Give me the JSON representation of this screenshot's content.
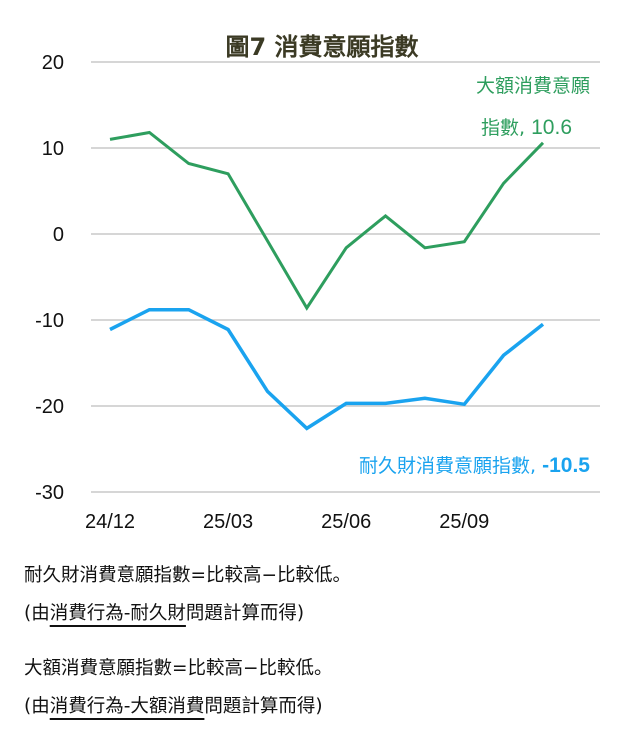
{
  "chart_data": {
    "type": "line",
    "title": "圖7  消費意願指數",
    "xlabel": "",
    "ylabel": "",
    "x": [
      "24/12",
      "25/01",
      "25/02",
      "25/03",
      "25/04",
      "25/05",
      "25/06",
      "25/07",
      "25/08",
      "25/09",
      "25/10",
      "25/11"
    ],
    "x_tick_labels": [
      "24/12",
      "25/03",
      "25/06",
      "25/09"
    ],
    "ylim": [
      -30,
      20
    ],
    "y_ticks": [
      20,
      10,
      0,
      -10,
      -20,
      -30
    ],
    "grid": true,
    "series": [
      {
        "name": "大額消費意願指數",
        "color": "#2e9e5e",
        "values": [
          11.0,
          11.8,
          8.2,
          7.0,
          -0.8,
          -8.6,
          -1.6,
          2.1,
          -1.6,
          -0.9,
          5.9,
          10.6
        ],
        "label_line1": "大額消費意願",
        "label_line2_text": "指數, ",
        "label_line2_value": "10.6"
      },
      {
        "name": "耐久財消費意願指數",
        "color": "#1aa3ef",
        "values": [
          -11.1,
          -8.8,
          -8.8,
          -11.1,
          -18.3,
          -22.6,
          -19.7,
          -19.7,
          -19.1,
          -19.8,
          -14.1,
          -10.5
        ],
        "label_text": "耐久財消費意願指數, ",
        "label_value": "-10.5"
      }
    ]
  },
  "notes": {
    "durable_formula": "耐久財消費意願指數=比較高−比較低。",
    "durable_source_pre": "(由",
    "durable_source_underlined": "消費行為-耐久財",
    "durable_source_post": "問題計算而得)",
    "major_formula": "大額消費意願指數=比較高−比較低。",
    "major_source_pre": "(由",
    "major_source_underlined": "消費行為-大額消費",
    "major_source_post": "問題計算而得)"
  }
}
